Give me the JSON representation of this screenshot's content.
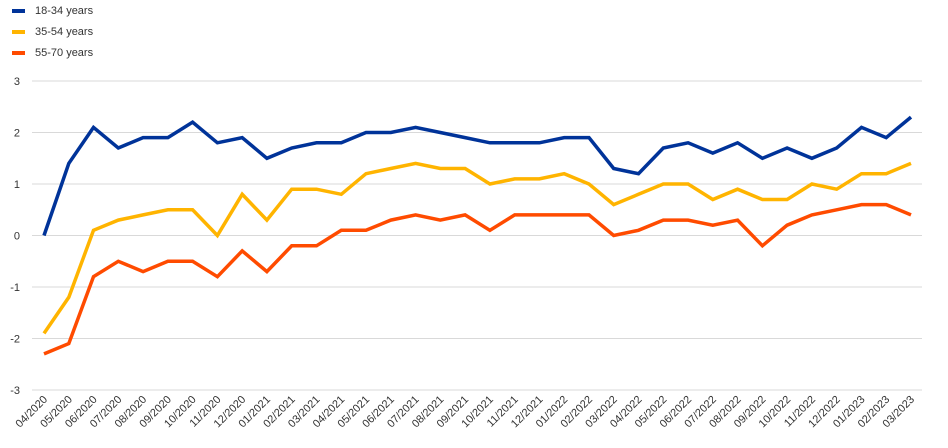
{
  "chart_data": {
    "type": "line",
    "title": "",
    "xlabel": "",
    "ylabel": "",
    "ylim": [
      -3,
      3
    ],
    "yticks": [
      "-3",
      "-2",
      "-1",
      "0",
      "1",
      "2",
      "3"
    ],
    "grid": true,
    "legend_position": "top-left",
    "categories": [
      "04/2020",
      "05/2020",
      "06/2020",
      "07/2020",
      "08/2020",
      "09/2020",
      "10/2020",
      "11/2020",
      "12/2020",
      "01/2021",
      "02/2021",
      "03/2021",
      "04/2021",
      "05/2021",
      "06/2021",
      "07/2021",
      "08/2021",
      "09/2021",
      "10/2021",
      "11/2021",
      "12/2021",
      "01/2022",
      "02/2022",
      "03/2022",
      "04/2022",
      "05/2022",
      "06/2022",
      "07/2022",
      "08/2022",
      "09/2022",
      "10/2022",
      "11/2022",
      "12/2022",
      "01/2023",
      "02/2023",
      "03/2023"
    ],
    "series": [
      {
        "name": "18-34 years",
        "color": "#003399",
        "values": [
          0.0,
          1.4,
          2.1,
          1.7,
          1.9,
          1.9,
          2.2,
          1.8,
          1.9,
          1.5,
          1.7,
          1.8,
          1.8,
          2.0,
          2.0,
          2.1,
          2.0,
          1.9,
          1.8,
          1.8,
          1.8,
          1.9,
          1.9,
          1.3,
          1.2,
          1.7,
          1.8,
          1.6,
          1.8,
          1.5,
          1.7,
          1.5,
          1.7,
          2.1,
          1.9,
          2.3
        ]
      },
      {
        "name": "35-54 years",
        "color": "#FFB400",
        "values": [
          -1.9,
          -1.2,
          0.1,
          0.3,
          0.4,
          0.5,
          0.5,
          0.0,
          0.8,
          0.3,
          0.9,
          0.9,
          0.8,
          1.2,
          1.3,
          1.4,
          1.3,
          1.3,
          1.0,
          1.1,
          1.1,
          1.2,
          1.0,
          0.6,
          0.8,
          1.0,
          1.0,
          0.7,
          0.9,
          0.7,
          0.7,
          1.0,
          0.9,
          1.2,
          1.2,
          1.4
        ]
      },
      {
        "name": "55-70 years",
        "color": "#FF4B00",
        "values": [
          -2.3,
          -2.1,
          -0.8,
          -0.5,
          -0.7,
          -0.5,
          -0.5,
          -0.8,
          -0.3,
          -0.7,
          -0.2,
          -0.2,
          0.1,
          0.1,
          0.3,
          0.4,
          0.3,
          0.4,
          0.1,
          0.4,
          0.4,
          0.4,
          0.4,
          0.0,
          0.1,
          0.3,
          0.3,
          0.2,
          0.3,
          -0.2,
          0.2,
          0.4,
          0.5,
          0.6,
          0.6,
          0.4
        ]
      }
    ]
  }
}
